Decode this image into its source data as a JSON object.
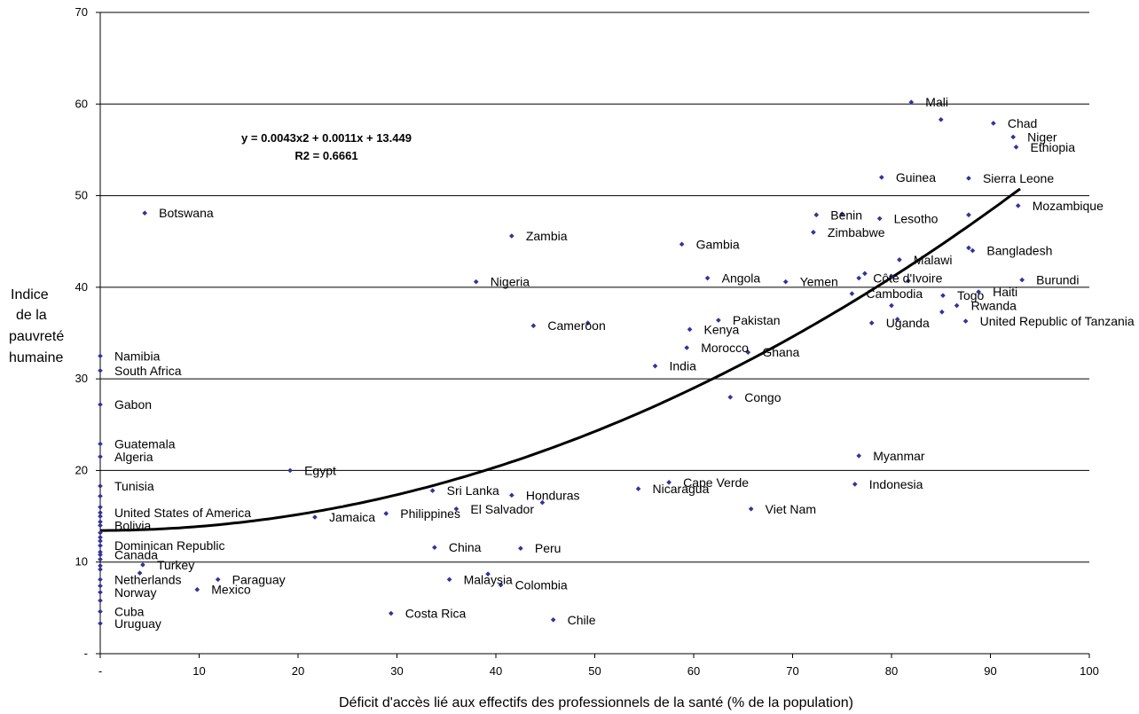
{
  "chart_data": {
    "type": "scatter",
    "title": "",
    "xlabel": "Déficit d'accès lié aux effectifs des professionnels de la santé (% de la population)",
    "ylabel": [
      "Indice",
      "de la",
      "pauvreté",
      "humaine"
    ],
    "xlim": [
      0,
      100
    ],
    "ylim": [
      0,
      70
    ],
    "x_ticks": [
      "-",
      "10",
      "20",
      "30",
      "40",
      "50",
      "60",
      "70",
      "80",
      "90",
      "100"
    ],
    "y_ticks": [
      "-",
      "10",
      "20",
      "30",
      "40",
      "50",
      "60",
      "70"
    ],
    "grid": "horizontal",
    "legend": "none",
    "marker_color": "#333399",
    "trendline": {
      "type": "polynomial",
      "degree": 2,
      "coefficients": [
        0.0043,
        0.0011,
        13.449
      ],
      "x_range": [
        0,
        93
      ],
      "color": "#000000",
      "equation": "y = 0.0043x2 + 0.0011x + 13.449",
      "r2": "R2 = 0.6661"
    },
    "points": [
      {
        "label": "Mali",
        "x": 82,
        "y": 60.2
      },
      {
        "label": "",
        "x": 85,
        "y": 58.3
      },
      {
        "label": "Chad",
        "x": 90.3,
        "y": 57.9
      },
      {
        "label": "Niger",
        "x": 92.3,
        "y": 56.4
      },
      {
        "label": "Ethiopia",
        "x": 92.6,
        "y": 55.3
      },
      {
        "label": "Guinea",
        "x": 79,
        "y": 52
      },
      {
        "label": "Sierra Leone",
        "x": 87.8,
        "y": 51.9
      },
      {
        "label": "Botswana",
        "x": 4.5,
        "y": 48.1
      },
      {
        "label": "Benin",
        "x": 72.4,
        "y": 47.9
      },
      {
        "label": "",
        "x": 75,
        "y": 48
      },
      {
        "label": "Lesotho",
        "x": 78.8,
        "y": 47.5
      },
      {
        "label": "",
        "x": 87.8,
        "y": 47.9
      },
      {
        "label": "Mozambique",
        "x": 92.8,
        "y": 48.9
      },
      {
        "label": "Zimbabwe",
        "x": 72.1,
        "y": 46
      },
      {
        "label": "Zambia",
        "x": 41.6,
        "y": 45.6
      },
      {
        "label": "Gambia",
        "x": 58.8,
        "y": 44.7
      },
      {
        "label": "Bangladesh",
        "x": 88.2,
        "y": 44
      },
      {
        "label": "",
        "x": 87.8,
        "y": 44.3
      },
      {
        "label": "Malawi",
        "x": 80.8,
        "y": 43
      },
      {
        "label": "Angola",
        "x": 61.4,
        "y": 41
      },
      {
        "label": "Côte d'Ivoire",
        "x": 76.7,
        "y": 41
      },
      {
        "label": "",
        "x": 77.3,
        "y": 41.5
      },
      {
        "label": "",
        "x": 80,
        "y": 41.2
      },
      {
        "label": "Nigeria",
        "x": 38,
        "y": 40.6
      },
      {
        "label": "Yemen",
        "x": 69.3,
        "y": 40.6
      },
      {
        "label": "",
        "x": 81.7,
        "y": 40.7
      },
      {
        "label": "Burundi",
        "x": 93.2,
        "y": 40.8
      },
      {
        "label": "Cambodia",
        "x": 76,
        "y": 39.3
      },
      {
        "label": "Togo",
        "x": 85.2,
        "y": 39.1
      },
      {
        "label": "Haiti",
        "x": 88.8,
        "y": 39.5
      },
      {
        "label": "",
        "x": 80,
        "y": 38
      },
      {
        "label": "Rwanda",
        "x": 86.6,
        "y": 38
      },
      {
        "label": "",
        "x": 85.1,
        "y": 37.3
      },
      {
        "label": "Pakistan",
        "x": 62.5,
        "y": 36.4
      },
      {
        "label": "United Republic of Tanzania",
        "x": 87.5,
        "y": 36.3
      },
      {
        "label": "Uganda",
        "x": 78,
        "y": 36.1
      },
      {
        "label": "",
        "x": 80.6,
        "y": 36.5
      },
      {
        "label": "Cameroon",
        "x": 43.8,
        "y": 35.8
      },
      {
        "label": "",
        "x": 49.3,
        "y": 36.1
      },
      {
        "label": "Kenya",
        "x": 59.6,
        "y": 35.4
      },
      {
        "label": "Morocco",
        "x": 59.3,
        "y": 33.4
      },
      {
        "label": "Ghana",
        "x": 65.5,
        "y": 32.9
      },
      {
        "label": "India",
        "x": 56.1,
        "y": 31.4
      },
      {
        "label": "Namibia",
        "x": 0,
        "y": 32.5
      },
      {
        "label": "South Africa",
        "x": 0,
        "y": 30.9
      },
      {
        "label": "Congo",
        "x": 63.7,
        "y": 28
      },
      {
        "label": "Gabon",
        "x": 0,
        "y": 27.2
      },
      {
        "label": "Guatemala",
        "x": 0,
        "y": 22.9
      },
      {
        "label": "Algeria",
        "x": 0,
        "y": 21.5
      },
      {
        "label": "Myanmar",
        "x": 76.7,
        "y": 21.6
      },
      {
        "label": "Egypt",
        "x": 19.2,
        "y": 20
      },
      {
        "label": "Cape Verde",
        "x": 57.5,
        "y": 18.7
      },
      {
        "label": "Indonesia",
        "x": 76.3,
        "y": 18.5
      },
      {
        "label": "Tunisia",
        "x": 0,
        "y": 18.3
      },
      {
        "label": "Sri Lanka",
        "x": 33.6,
        "y": 17.8
      },
      {
        "label": "Nicaragua",
        "x": 54.4,
        "y": 18
      },
      {
        "label": "Honduras",
        "x": 41.6,
        "y": 17.3
      },
      {
        "label": "",
        "x": 44.7,
        "y": 16.5
      },
      {
        "label": "United States of America",
        "x": 0,
        "y": 15.4
      },
      {
        "label": "El Salvador",
        "x": 36,
        "y": 15.8
      },
      {
        "label": "Viet Nam",
        "x": 65.8,
        "y": 15.8
      },
      {
        "label": "Philippines",
        "x": 28.9,
        "y": 15.3
      },
      {
        "label": "Jamaica",
        "x": 21.7,
        "y": 14.9
      },
      {
        "label": "Bolivia",
        "x": 0,
        "y": 14
      },
      {
        "label": "Dominican Republic",
        "x": 0,
        "y": 11.8
      },
      {
        "label": "China",
        "x": 33.8,
        "y": 11.6
      },
      {
        "label": "Peru",
        "x": 42.5,
        "y": 11.5
      },
      {
        "label": "Canada",
        "x": 0,
        "y": 10.8
      },
      {
        "label": "Turkey",
        "x": 4.3,
        "y": 9.7
      },
      {
        "label": "",
        "x": 4,
        "y": 8.8
      },
      {
        "label": "Netherlands",
        "x": 0,
        "y": 8.1
      },
      {
        "label": "Paraguay",
        "x": 11.9,
        "y": 8.1
      },
      {
        "label": "Malaysia",
        "x": 35.3,
        "y": 8.1
      },
      {
        "label": "",
        "x": 39.2,
        "y": 8.7
      },
      {
        "label": "Colombia",
        "x": 40.5,
        "y": 7.5
      },
      {
        "label": "Mexico",
        "x": 9.8,
        "y": 7
      },
      {
        "label": "Norway",
        "x": 0,
        "y": 6.7
      },
      {
        "label": "Cuba",
        "x": 0,
        "y": 4.6
      },
      {
        "label": "Costa Rica",
        "x": 29.4,
        "y": 4.4
      },
      {
        "label": "Chile",
        "x": 45.8,
        "y": 3.7
      },
      {
        "label": "Uruguay",
        "x": 0,
        "y": 3.3
      },
      {
        "label": "",
        "x": 0,
        "y": 17.2
      },
      {
        "label": "",
        "x": 0,
        "y": 16
      },
      {
        "label": "",
        "x": 0,
        "y": 15
      },
      {
        "label": "",
        "x": 0,
        "y": 14.4
      },
      {
        "label": "",
        "x": 0,
        "y": 13.2
      },
      {
        "label": "",
        "x": 0,
        "y": 12.7
      },
      {
        "label": "",
        "x": 0,
        "y": 12.3
      },
      {
        "label": "",
        "x": 0,
        "y": 11.1
      },
      {
        "label": "",
        "x": 0,
        "y": 10.3
      },
      {
        "label": "",
        "x": 0,
        "y": 9.6
      },
      {
        "label": "",
        "x": 0,
        "y": 9.2
      },
      {
        "label": "",
        "x": 0,
        "y": 7.4
      },
      {
        "label": "",
        "x": 0,
        "y": 5.8
      }
    ]
  }
}
